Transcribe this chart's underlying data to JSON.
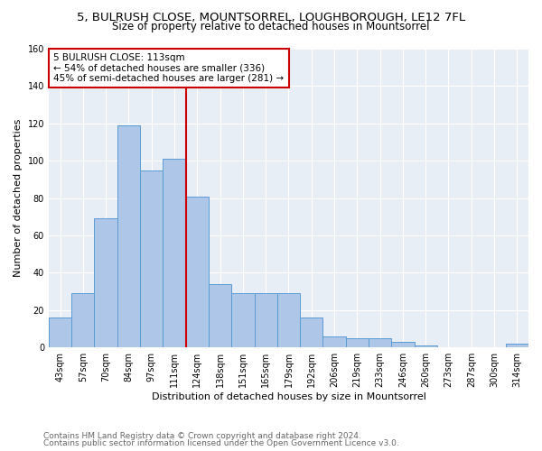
{
  "title1": "5, BULRUSH CLOSE, MOUNTSORREL, LOUGHBOROUGH, LE12 7FL",
  "title2": "Size of property relative to detached houses in Mountsorrel",
  "xlabel": "Distribution of detached houses by size in Mountsorrel",
  "ylabel": "Number of detached properties",
  "bar_labels": [
    "43sqm",
    "57sqm",
    "70sqm",
    "84sqm",
    "97sqm",
    "111sqm",
    "124sqm",
    "138sqm",
    "151sqm",
    "165sqm",
    "179sqm",
    "192sqm",
    "206sqm",
    "219sqm",
    "233sqm",
    "246sqm",
    "260sqm",
    "273sqm",
    "287sqm",
    "300sqm",
    "314sqm"
  ],
  "bar_values": [
    16,
    29,
    69,
    119,
    95,
    101,
    81,
    34,
    29,
    29,
    29,
    16,
    6,
    5,
    5,
    3,
    1,
    0,
    0,
    0,
    2
  ],
  "bar_color": "#aec6e8",
  "bar_edge_color": "#5b9bd5",
  "vline_x": 5.5,
  "vline_color": "#cc0000",
  "annotation_text": "5 BULRUSH CLOSE: 113sqm\n← 54% of detached houses are smaller (336)\n45% of semi-detached houses are larger (281) →",
  "annotation_box_color": "#ffffff",
  "annotation_box_edge": "#cc0000",
  "ylim": [
    0,
    160
  ],
  "yticks": [
    0,
    20,
    40,
    60,
    80,
    100,
    120,
    140,
    160
  ],
  "bg_color": "#e8eef5",
  "footer1": "Contains HM Land Registry data © Crown copyright and database right 2024.",
  "footer2": "Contains public sector information licensed under the Open Government Licence v3.0.",
  "title1_fontsize": 9.5,
  "title2_fontsize": 8.5,
  "xlabel_fontsize": 8,
  "ylabel_fontsize": 8,
  "tick_fontsize": 7,
  "annotation_fontsize": 7.5,
  "footer_fontsize": 6.5
}
